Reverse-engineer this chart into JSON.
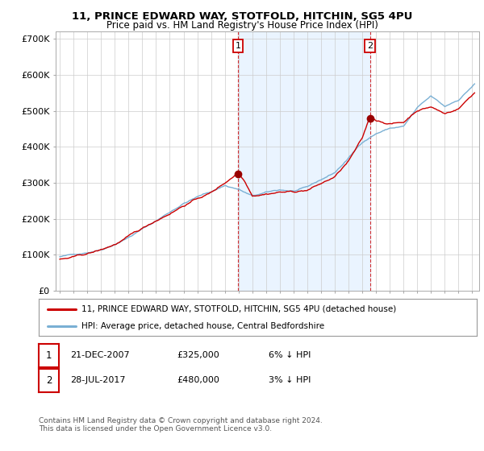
{
  "title_line1": "11, PRINCE EDWARD WAY, STOTFOLD, HITCHIN, SG5 4PU",
  "title_line2": "Price paid vs. HM Land Registry's House Price Index (HPI)",
  "ylabel_ticks": [
    "£0",
    "£100K",
    "£200K",
    "£300K",
    "£400K",
    "£500K",
    "£600K",
    "£700K"
  ],
  "ytick_values": [
    0,
    100000,
    200000,
    300000,
    400000,
    500000,
    600000,
    700000
  ],
  "ylim": [
    0,
    720000
  ],
  "xlim_start": 1994.7,
  "xlim_end": 2025.5,
  "sale1_year": 2007.97,
  "sale1_price": 325000,
  "sale1_label": "1",
  "sale2_year": 2017.57,
  "sale2_price": 480000,
  "sale2_label": "2",
  "legend_entry1": "11, PRINCE EDWARD WAY, STOTFOLD, HITCHIN, SG5 4PU (detached house)",
  "legend_entry2": "HPI: Average price, detached house, Central Bedfordshire",
  "table_row1": [
    "1",
    "21-DEC-2007",
    "£325,000",
    "6% ↓ HPI"
  ],
  "table_row2": [
    "2",
    "28-JUL-2017",
    "£480,000",
    "3% ↓ HPI"
  ],
  "footnote": "Contains HM Land Registry data © Crown copyright and database right 2024.\nThis data is licensed under the Open Government Licence v3.0.",
  "line_color_red": "#cc0000",
  "line_color_blue": "#7ab0d4",
  "fill_color_blue": "#ddeeff",
  "background_color": "#ffffff",
  "grid_color": "#cccccc",
  "annotation_box_color": "#cc0000",
  "sale_marker_color": "#990000",
  "vline_color": "#cc0000"
}
